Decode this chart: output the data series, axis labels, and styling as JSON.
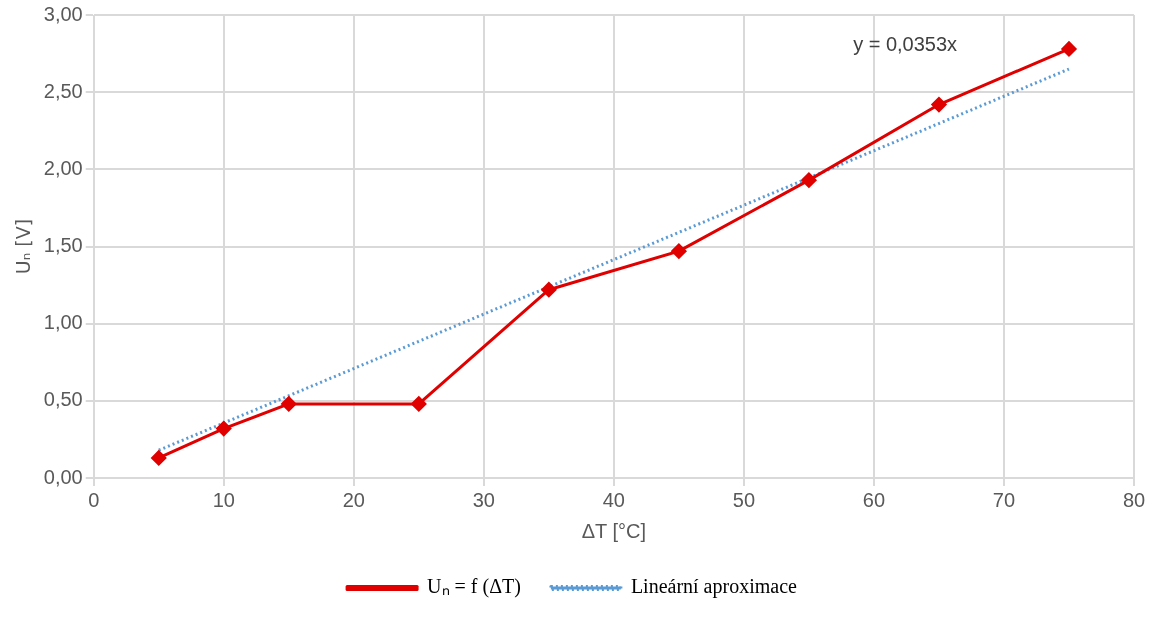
{
  "chart_data": {
    "type": "line",
    "xlabel": "ΔT [°C]",
    "ylabel": "Uₙ [V]",
    "xlim": [
      0,
      80
    ],
    "xticks": [
      0,
      10,
      20,
      30,
      40,
      50,
      60,
      70,
      80
    ],
    "ylim": [
      0,
      3
    ],
    "yticks": [
      {
        "value": 0,
        "label": "0,00"
      },
      {
        "value": 0.5,
        "label": "0,50"
      },
      {
        "value": 1,
        "label": "1,00"
      },
      {
        "value": 1.5,
        "label": "1,50"
      },
      {
        "value": 2,
        "label": "2,00"
      },
      {
        "value": 2.5,
        "label": "2,50"
      },
      {
        "value": 3,
        "label": "3,00"
      }
    ],
    "grid": true,
    "legend": "bottom",
    "series": [
      {
        "name": "Uₙ = f (ΔT)",
        "color": "#e00000",
        "x": [
          5,
          10,
          15,
          25,
          35,
          45,
          55,
          65,
          75
        ],
        "values": [
          0.13,
          0.32,
          0.48,
          0.48,
          1.22,
          1.47,
          1.93,
          2.42,
          2.78
        ],
        "marker": "diamond",
        "line_style": "solid"
      },
      {
        "name": "Lineární aproximace",
        "color": "#5b9bd5",
        "x": [
          5,
          75
        ],
        "values": [
          0.18,
          2.65
        ],
        "marker": "none",
        "line_style": "dotted"
      }
    ],
    "annotations": [
      "y = 0,0353x"
    ]
  }
}
